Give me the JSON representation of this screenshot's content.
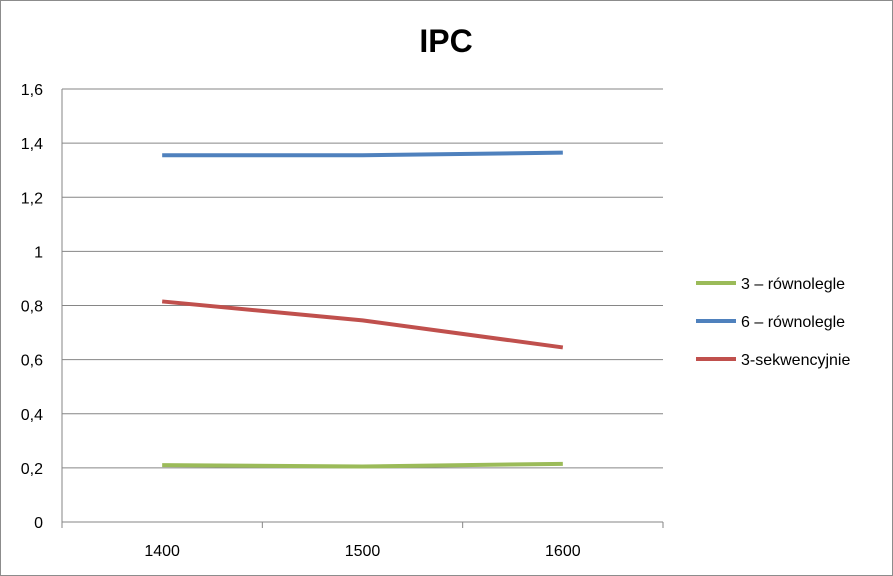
{
  "chart_data": {
    "type": "line",
    "title": "IPC",
    "xlabel": "",
    "ylabel": "",
    "categories": [
      "1400",
      "1500",
      "1600"
    ],
    "ylim": [
      0,
      1.6
    ],
    "yticks": [
      "0",
      "0,2",
      "0,4",
      "0,6",
      "0,8",
      "1",
      "1,2",
      "1,4",
      "1,6"
    ],
    "grid": true,
    "legend_position": "right",
    "series": [
      {
        "name": "3 – równolegle",
        "color": "#9bbb59",
        "values": [
          0.21,
          0.205,
          0.215
        ]
      },
      {
        "name": "6 – równolegle",
        "color": "#4f81bd",
        "values": [
          1.355,
          1.355,
          1.365
        ]
      },
      {
        "name": "3-sekwencyjnie",
        "color": "#c0504d",
        "values": [
          0.815,
          0.745,
          0.645
        ]
      }
    ]
  }
}
